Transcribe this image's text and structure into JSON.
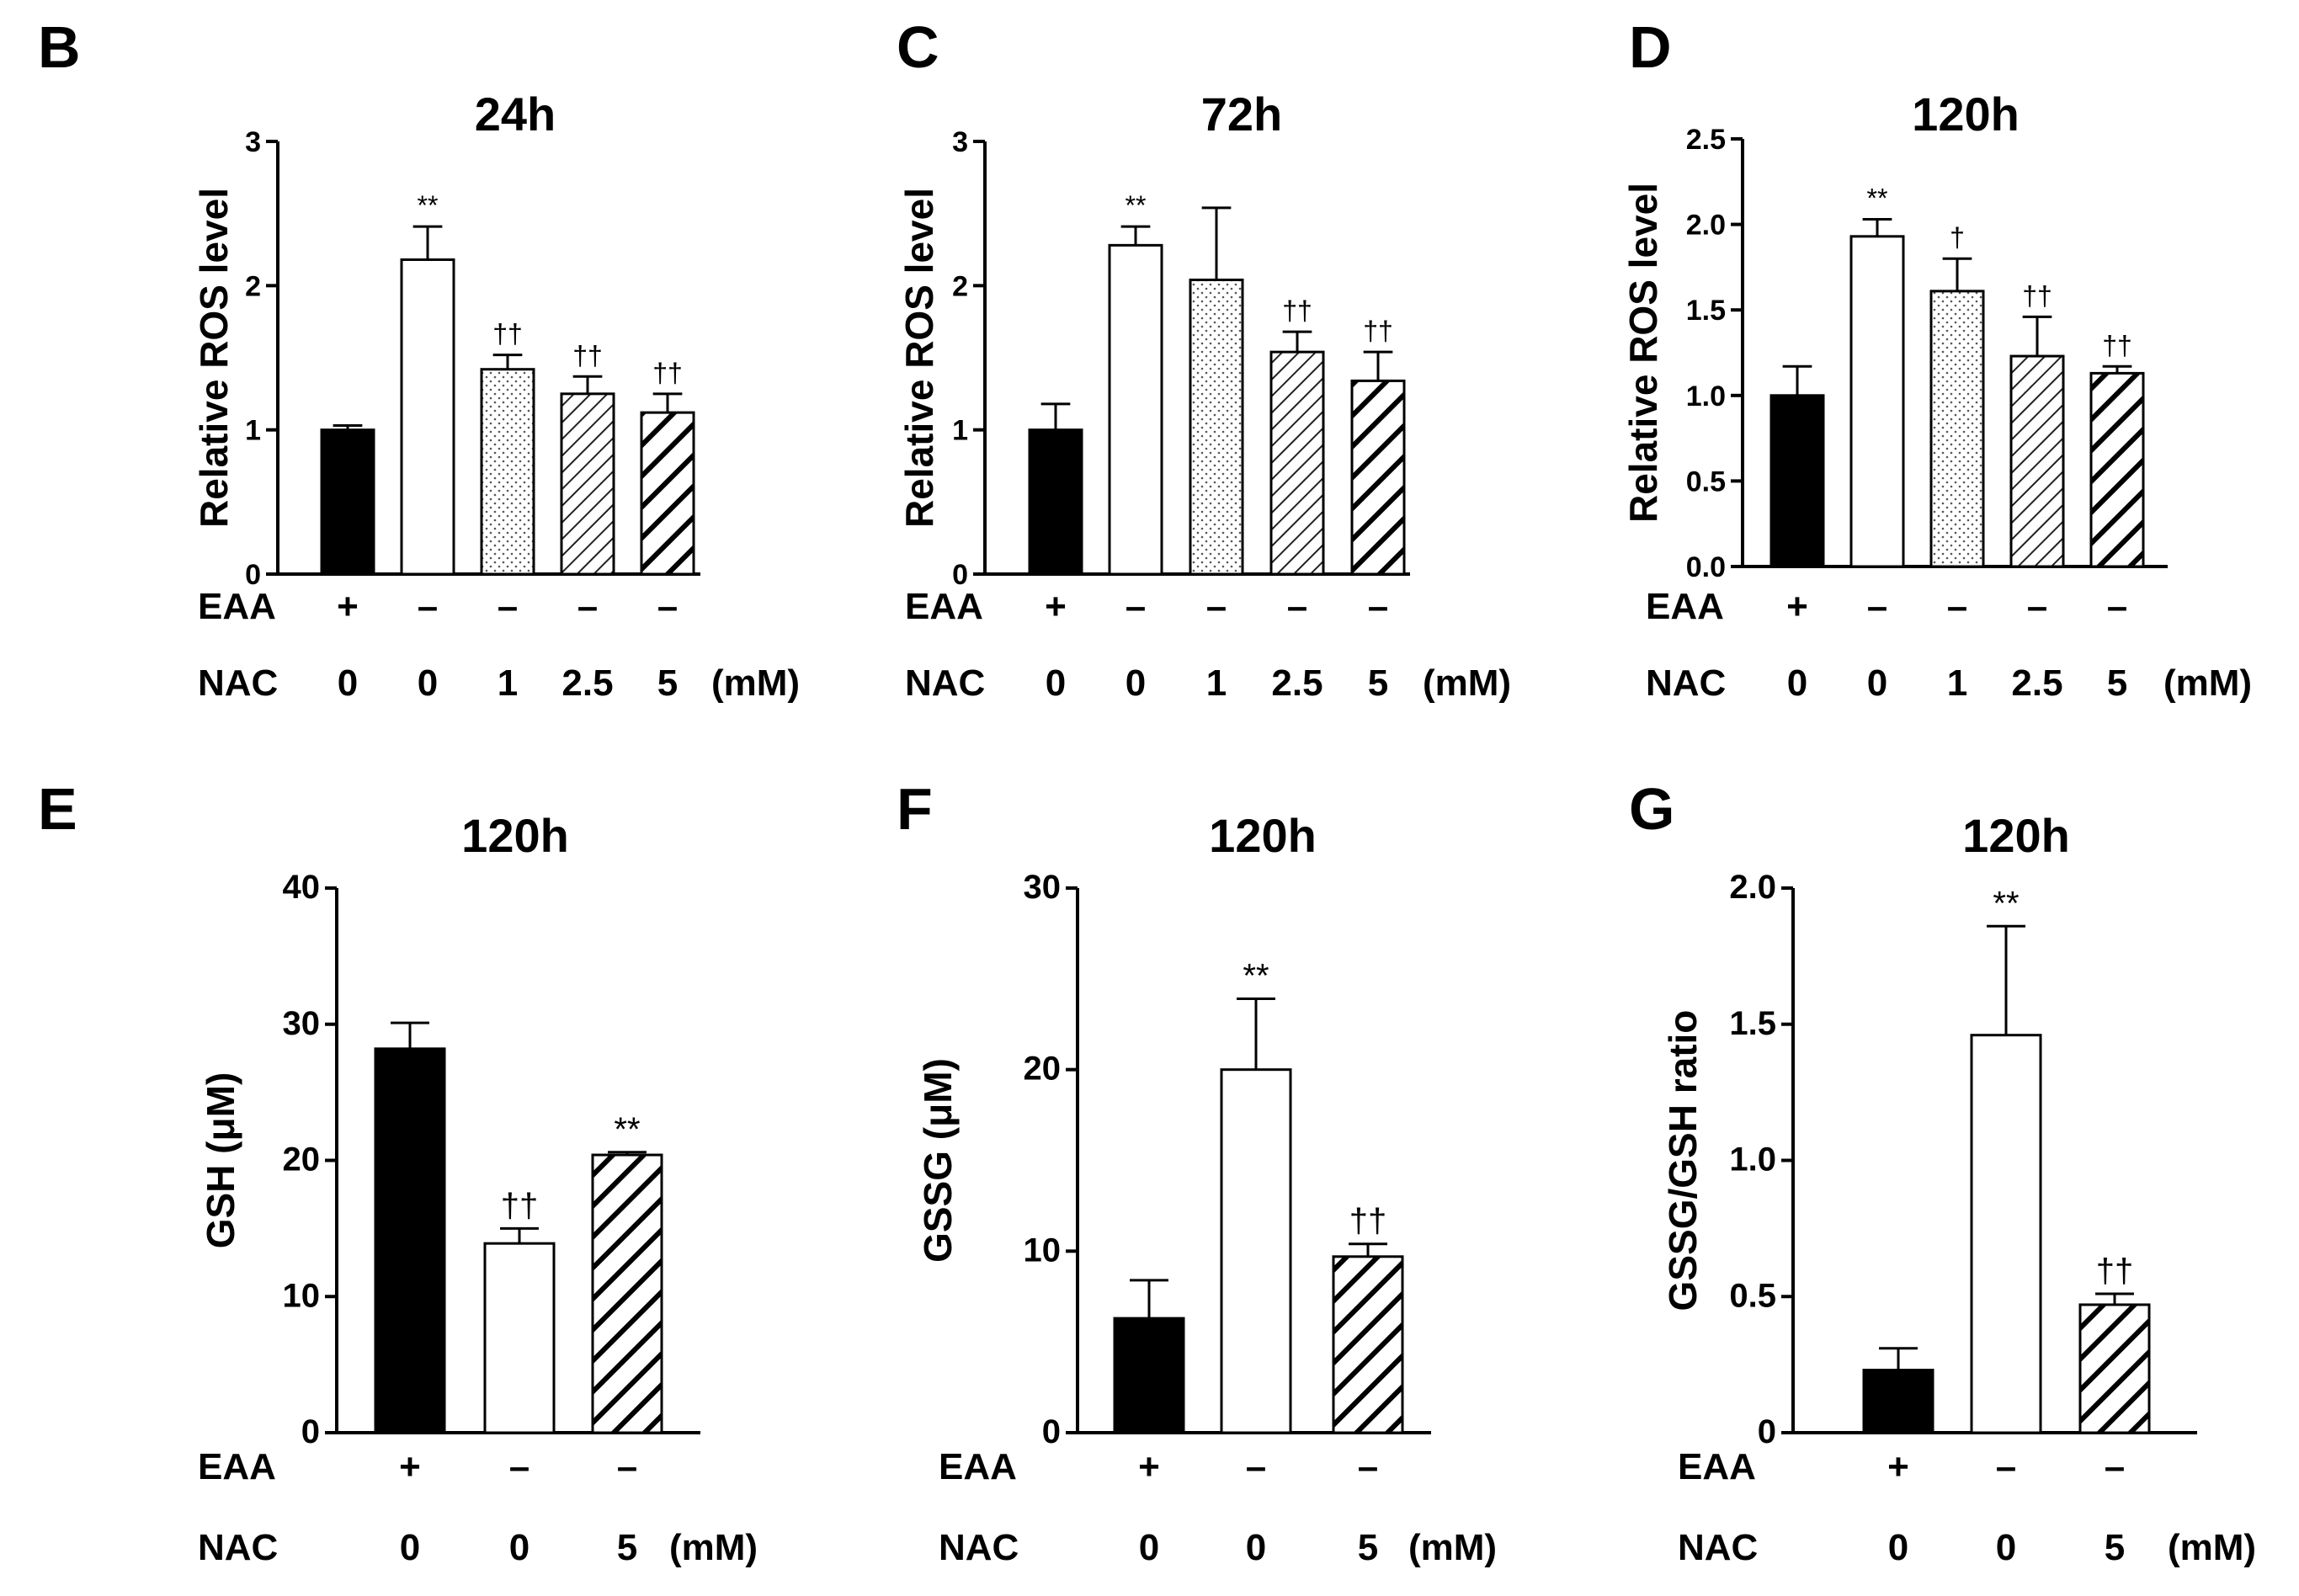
{
  "chart_data": [
    {
      "id": "B",
      "type": "bar",
      "title": "24h",
      "ylabel": "Relative ROS level",
      "ylim": [
        0,
        3
      ],
      "yticks": [
        "0",
        "1",
        "2",
        "3"
      ],
      "categories": [
        "EAA+ NAC 0",
        "EAA− NAC 0",
        "EAA− NAC 1",
        "EAA− NAC 2.5",
        "EAA− NAC 5"
      ],
      "values": [
        1.0,
        2.18,
        1.42,
        1.25,
        1.12
      ],
      "errors": [
        0.03,
        0.23,
        0.1,
        0.12,
        0.13
      ],
      "annotations": [
        "",
        "**",
        "††",
        "††",
        "††"
      ],
      "fills": [
        "solid",
        "open",
        "dots",
        "hatch",
        "bold-hatch"
      ],
      "row1": {
        "label": "EAA",
        "values": [
          "+",
          "–",
          "–",
          "–",
          "–"
        ]
      },
      "row2": {
        "label": "NAC",
        "values": [
          "0",
          "0",
          "1",
          "2.5",
          "5"
        ],
        "unit": "(mM)"
      }
    },
    {
      "id": "C",
      "type": "bar",
      "title": "72h",
      "ylabel": "Relative ROS level",
      "ylim": [
        0,
        3
      ],
      "yticks": [
        "0",
        "1",
        "2",
        "3"
      ],
      "categories": [
        "EAA+ NAC 0",
        "EAA− NAC 0",
        "EAA− NAC 1",
        "EAA− NAC 2.5",
        "EAA− NAC 5"
      ],
      "values": [
        1.0,
        2.28,
        2.04,
        1.54,
        1.34
      ],
      "errors": [
        0.18,
        0.13,
        0.5,
        0.14,
        0.2
      ],
      "annotations": [
        "",
        "**",
        "",
        "††",
        "††"
      ],
      "fills": [
        "solid",
        "open",
        "dots",
        "hatch",
        "bold-hatch"
      ],
      "row1": {
        "label": "EAA",
        "values": [
          "+",
          "–",
          "–",
          "–",
          "–"
        ]
      },
      "row2": {
        "label": "NAC",
        "values": [
          "0",
          "0",
          "1",
          "2.5",
          "5"
        ],
        "unit": "(mM)"
      }
    },
    {
      "id": "D",
      "type": "bar",
      "title": "120h",
      "ylabel": "Relative ROS level",
      "ylim": [
        0,
        2.5
      ],
      "yticks": [
        "0.0",
        "0.5",
        "1.0",
        "1.5",
        "2.0",
        "2.5"
      ],
      "categories": [
        "EAA+ NAC 0",
        "EAA− NAC 0",
        "EAA− NAC 1",
        "EAA− NAC 2.5",
        "EAA− NAC 5"
      ],
      "values": [
        1.0,
        1.93,
        1.61,
        1.23,
        1.13
      ],
      "errors": [
        0.17,
        0.1,
        0.19,
        0.23,
        0.04
      ],
      "annotations": [
        "",
        "**",
        "†",
        "††",
        "††"
      ],
      "fills": [
        "solid",
        "open",
        "dots",
        "hatch",
        "bold-hatch"
      ],
      "row1": {
        "label": "EAA",
        "values": [
          "+",
          "–",
          "–",
          "–",
          "–"
        ]
      },
      "row2": {
        "label": "NAC",
        "values": [
          "0",
          "0",
          "1",
          "2.5",
          "5"
        ],
        "unit": "(mM)"
      }
    },
    {
      "id": "E",
      "type": "bar",
      "title": "120h",
      "ylabel": "GSH (μM)",
      "ylim": [
        0,
        40
      ],
      "yticks": [
        "0",
        "10",
        "20",
        "30",
        "40"
      ],
      "categories": [
        "EAA+ NAC 0",
        "EAA− NAC 0",
        "EAA− NAC 5"
      ],
      "values": [
        28.2,
        13.9,
        20.4
      ],
      "errors": [
        1.9,
        1.1,
        0.2
      ],
      "annotations": [
        "",
        "††",
        "**"
      ],
      "fills": [
        "solid",
        "open",
        "bold-hatch"
      ],
      "row1": {
        "label": "EAA",
        "values": [
          "+",
          "–",
          "–"
        ]
      },
      "row2": {
        "label": "NAC",
        "values": [
          "0",
          "0",
          "5"
        ],
        "unit": "(mM)"
      }
    },
    {
      "id": "F",
      "type": "bar",
      "title": "120h",
      "ylabel": "GSSG (μM)",
      "ylim": [
        0,
        30
      ],
      "yticks": [
        "0",
        "10",
        "20",
        "30"
      ],
      "categories": [
        "EAA+ NAC 0",
        "EAA− NAC 0",
        "EAA− NAC 5"
      ],
      "values": [
        6.3,
        20.0,
        9.7
      ],
      "errors": [
        2.1,
        3.9,
        0.7
      ],
      "annotations": [
        "",
        "**",
        "††"
      ],
      "fills": [
        "solid",
        "open",
        "bold-hatch"
      ],
      "row1": {
        "label": "EAA",
        "values": [
          "+",
          "–",
          "–"
        ]
      },
      "row2": {
        "label": "NAC",
        "values": [
          "0",
          "0",
          "5"
        ],
        "unit": "(mM)"
      }
    },
    {
      "id": "G",
      "type": "bar",
      "title": "120h",
      "ylabel": "GSSG/GSH ratio",
      "ylim": [
        0,
        2.0
      ],
      "yticks": [
        "0",
        "0.5",
        "1.0",
        "1.5",
        "2.0"
      ],
      "categories": [
        "EAA+ NAC 0",
        "EAA− NAC 0",
        "EAA− NAC 5"
      ],
      "values": [
        0.23,
        1.46,
        0.47
      ],
      "errors": [
        0.08,
        0.4,
        0.04
      ],
      "annotations": [
        "",
        "**",
        "††"
      ],
      "fills": [
        "solid",
        "open",
        "bold-hatch"
      ],
      "row1": {
        "label": "EAA",
        "values": [
          "+",
          "–",
          "–"
        ]
      },
      "row2": {
        "label": "NAC",
        "values": [
          "0",
          "0",
          "5"
        ],
        "unit": "(mM)"
      }
    }
  ]
}
